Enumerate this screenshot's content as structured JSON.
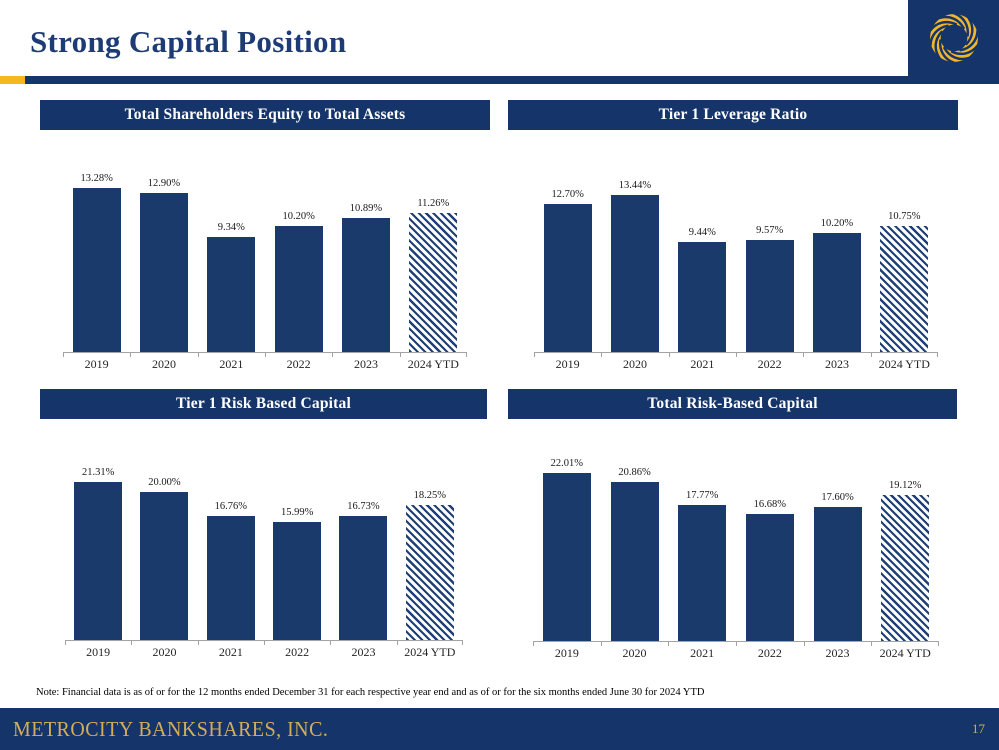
{
  "page": {
    "title": "Strong Capital Position",
    "note": "Note: Financial data is as of or for the 12 months ended December 31 for each respective year end and as of or for the six months ended June 30 for 2024 YTD",
    "footer": {
      "company": "METROCITY BANKSHARES, INC.",
      "page_number": "17"
    },
    "logo_icon": "metrocity-gold-swirl-logo"
  },
  "colors": {
    "navy": "#15356a",
    "bar_navy": "#1a3a6c",
    "gold_accent": "#f5b81f",
    "footer_gold": "#d3ad58"
  },
  "chart_data": [
    {
      "type": "bar",
      "title": "Total Shareholders Equity to Total Assets",
      "categories": [
        "2019",
        "2020",
        "2021",
        "2022",
        "2023",
        "2024 YTD"
      ],
      "values": [
        13.28,
        12.9,
        9.34,
        10.2,
        10.89,
        11.26
      ],
      "labels": [
        "13.28%",
        "12.90%",
        "9.34%",
        "10.20%",
        "10.89%",
        "11.26%"
      ],
      "hatched_index": 5,
      "ylim": [
        0,
        15
      ],
      "grid": false,
      "legend": false
    },
    {
      "type": "bar",
      "title": "Tier 1 Leverage Ratio",
      "categories": [
        "2019",
        "2020",
        "2021",
        "2022",
        "2023",
        "2024 YTD"
      ],
      "values": [
        12.7,
        13.44,
        9.44,
        9.57,
        10.2,
        10.75
      ],
      "labels": [
        "12.70%",
        "13.44%",
        "9.44%",
        "9.57%",
        "10.20%",
        "10.75%"
      ],
      "hatched_index": 5,
      "ylim": [
        0,
        15
      ],
      "grid": false,
      "legend": false
    },
    {
      "type": "bar",
      "title": "Tier 1 Risk Based Capital",
      "categories": [
        "2019",
        "2020",
        "2021",
        "2022",
        "2023",
        "2024 YTD"
      ],
      "values": [
        21.31,
        20.0,
        16.76,
        15.99,
        16.73,
        18.25
      ],
      "labels": [
        "21.31%",
        "20.00%",
        "16.76%",
        "15.99%",
        "16.73%",
        "18.25%"
      ],
      "hatched_index": 5,
      "ylim": [
        0,
        24
      ],
      "grid": false,
      "legend": false
    },
    {
      "type": "bar",
      "title": "Total Risk-Based Capital",
      "categories": [
        "2019",
        "2020",
        "2021",
        "2022",
        "2023",
        "2024 YTD"
      ],
      "values": [
        22.01,
        20.86,
        17.77,
        16.68,
        17.6,
        19.12
      ],
      "labels": [
        "22.01%",
        "20.86%",
        "17.77%",
        "16.68%",
        "17.60%",
        "19.12%"
      ],
      "hatched_index": 5,
      "ylim": [
        0,
        24
      ],
      "grid": false,
      "legend": false
    }
  ]
}
